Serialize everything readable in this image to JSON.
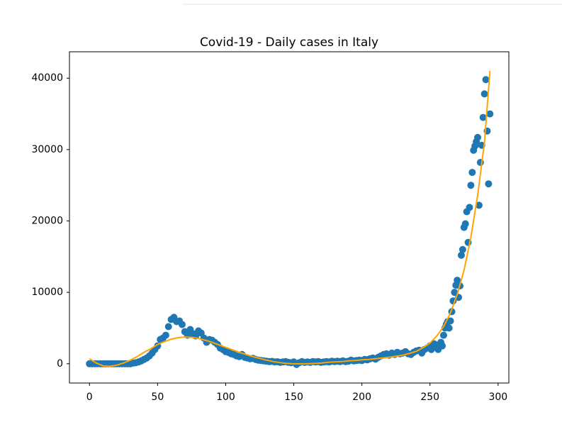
{
  "chart_data": {
    "type": "scatter",
    "title": "Covid-19 - Daily cases in Italy",
    "xlim": [
      -14.7,
      307.9
    ],
    "ylim": [
      -2700,
      43700
    ],
    "xticks": [
      0,
      50,
      100,
      150,
      200,
      250,
      300
    ],
    "yticks": [
      0,
      10000,
      20000,
      30000,
      40000
    ],
    "series": [
      {
        "type": "scatter",
        "color": "#1f77b4",
        "x": [
          0,
          2,
          4,
          6,
          8,
          10,
          12,
          14,
          16,
          18,
          20,
          22,
          24,
          26,
          28,
          30,
          32,
          34,
          36,
          38,
          40,
          42,
          44,
          46,
          48,
          50,
          52,
          54,
          56,
          58,
          60,
          62,
          64,
          66,
          68,
          70,
          72,
          74,
          76,
          78,
          80,
          82,
          84,
          86,
          88,
          90,
          92,
          94,
          96,
          98,
          100,
          102,
          104,
          106,
          108,
          110,
          112,
          114,
          116,
          118,
          120,
          122,
          124,
          126,
          128,
          130,
          132,
          134,
          136,
          138,
          140,
          142,
          144,
          146,
          148,
          150,
          152,
          154,
          156,
          158,
          160,
          162,
          164,
          166,
          168,
          170,
          172,
          174,
          176,
          178,
          180,
          182,
          184,
          186,
          188,
          190,
          192,
          194,
          196,
          198,
          200,
          202,
          204,
          206,
          208,
          210,
          212,
          214,
          216,
          218,
          220,
          222,
          224,
          226,
          228,
          230,
          232,
          234,
          236,
          238,
          240,
          242,
          244,
          246,
          248,
          250,
          251,
          252,
          253,
          254,
          255,
          256,
          257,
          258,
          259,
          260,
          261,
          262,
          263,
          264,
          265,
          266,
          267,
          268,
          269,
          270,
          271,
          272,
          273,
          274,
          275,
          276,
          277,
          278,
          279,
          280,
          281,
          282,
          283,
          284,
          285,
          286,
          287,
          288,
          289,
          290,
          291,
          292,
          293,
          294
        ],
        "values": [
          0,
          0,
          0,
          0,
          0,
          0,
          0,
          0,
          0,
          0,
          0,
          0,
          0,
          0,
          0,
          0,
          100,
          150,
          250,
          400,
          600,
          800,
          1100,
          1500,
          2000,
          2500,
          3400,
          3600,
          4000,
          5200,
          6200,
          6500,
          5900,
          6000,
          5500,
          4500,
          4000,
          4800,
          4200,
          3900,
          4600,
          4300,
          3600,
          3000,
          3400,
          3300,
          3000,
          2700,
          2200,
          2000,
          1700,
          1600,
          1400,
          1300,
          1100,
          1000,
          1300,
          900,
          800,
          700,
          750,
          600,
          500,
          450,
          400,
          350,
          300,
          330,
          250,
          280,
          200,
          250,
          300,
          200,
          150,
          250,
          -100,
          150,
          300,
          200,
          250,
          200,
          300,
          250,
          300,
          200,
          250,
          300,
          250,
          350,
          300,
          350,
          300,
          400,
          300,
          350,
          500,
          400,
          450,
          500,
          450,
          600,
          550,
          700,
          800,
          650,
          900,
          1100,
          1300,
          1400,
          1200,
          1500,
          1300,
          1600,
          1400,
          1500,
          1700,
          1400,
          1300,
          1600,
          1800,
          1900,
          1500,
          2000,
          2200,
          2500,
          2000,
          2300,
          2800,
          2400,
          2600,
          2000,
          2700,
          3000,
          2500,
          4000,
          5000,
          5500,
          5900,
          5000,
          6000,
          7300,
          8800,
          10000,
          11000,
          11700,
          9300,
          10900,
          15200,
          16000,
          19100,
          19600,
          21300,
          17000,
          21900,
          25000,
          26800,
          29900,
          30500,
          31100,
          31700,
          22200,
          28200,
          30600,
          34500,
          37800,
          39800,
          32600,
          25200,
          35000
        ]
      },
      {
        "type": "line",
        "color": "#ffa500",
        "x": [
          0,
          5,
          10,
          15,
          20,
          25,
          30,
          35,
          40,
          45,
          50,
          55,
          60,
          65,
          70,
          75,
          80,
          85,
          90,
          95,
          100,
          105,
          110,
          115,
          120,
          125,
          130,
          135,
          140,
          145,
          150,
          155,
          160,
          165,
          170,
          175,
          180,
          185,
          190,
          195,
          200,
          205,
          210,
          215,
          220,
          225,
          230,
          235,
          240,
          245,
          250,
          255,
          260,
          265,
          270,
          275,
          280,
          285,
          290,
          294
        ],
        "values": [
          700,
          100,
          -300,
          -350,
          -200,
          100,
          500,
          1000,
          1600,
          2100,
          2700,
          3100,
          3450,
          3650,
          3750,
          3700,
          3550,
          3300,
          3000,
          2650,
          2300,
          1950,
          1600,
          1300,
          1000,
          750,
          500,
          300,
          150,
          50,
          0,
          0,
          0,
          50,
          100,
          200,
          250,
          300,
          400,
          450,
          550,
          600,
          700,
          800,
          900,
          1050,
          1200,
          1450,
          1750,
          2250,
          2900,
          3900,
          5200,
          7100,
          9700,
          13100,
          17700,
          23600,
          31000,
          41000
        ]
      }
    ]
  }
}
